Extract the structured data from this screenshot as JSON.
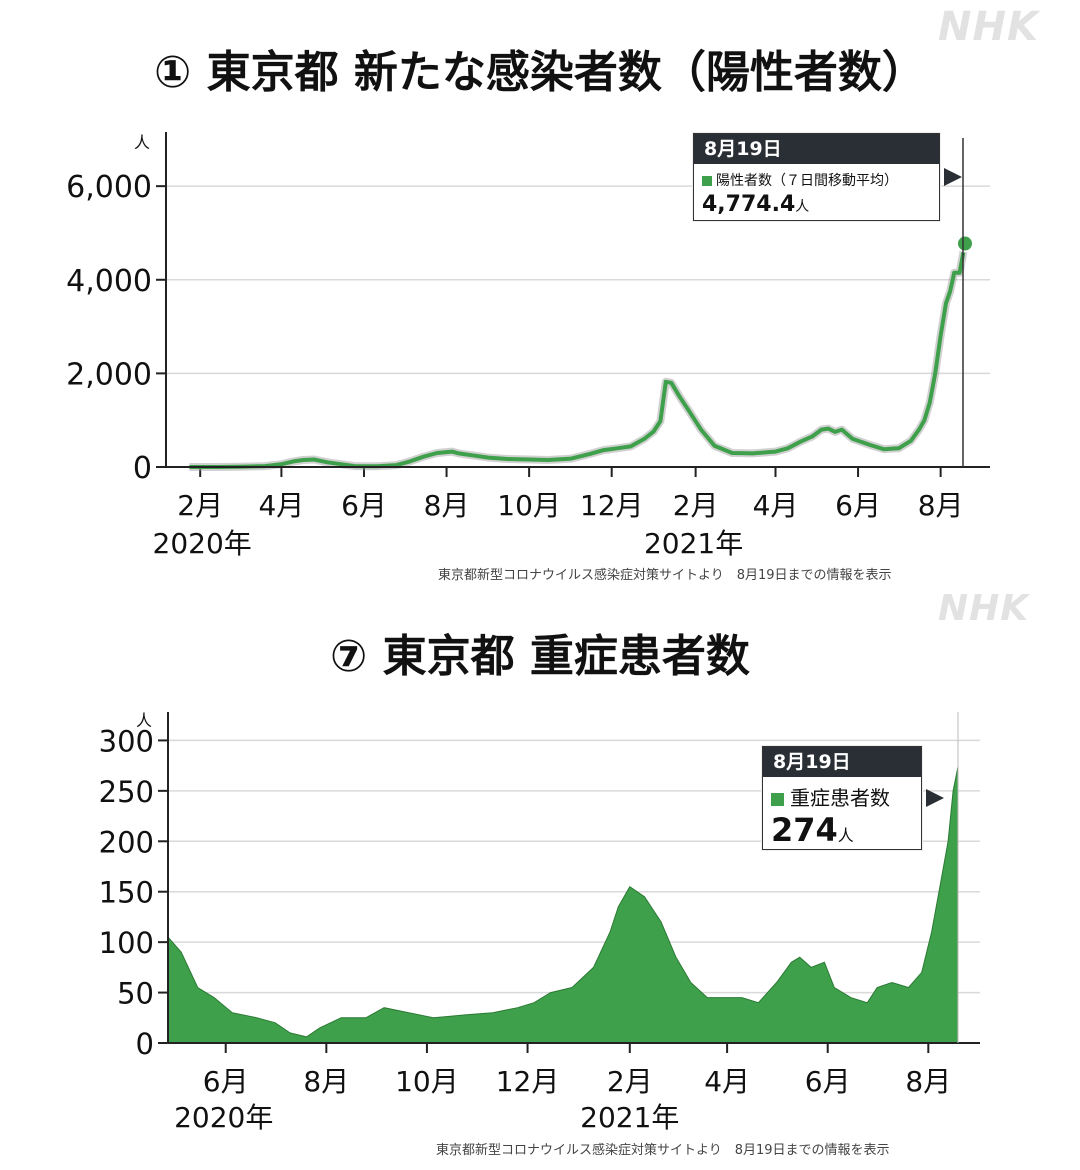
{
  "branding": {
    "logo_text_top": "NHK",
    "logo_text_mid": "NHK"
  },
  "colors": {
    "series": "#3ea04a",
    "series_dark": "#2c7a35",
    "grid": "#d9d9d9",
    "axis": "#222222"
  },
  "chart1": {
    "title": "① 東京都 新たな感染者数（陽性者数）",
    "unit": "人",
    "y_ticks": [
      "6,000",
      "4,000",
      "2,000",
      "0"
    ],
    "x_month_labels": [
      "2月",
      "4月",
      "6月",
      "8月",
      "10月",
      "12月",
      "2月",
      "4月",
      "6月",
      "8月"
    ],
    "year_labels": [
      "2020年",
      "2021年"
    ],
    "source": "東京都新型コロナウイルス感染症対策サイトより　8月19日までの情報を表示",
    "callout": {
      "date": "8月19日",
      "series_label": "陽性者数（７日間移動平均）",
      "value": "4,774.4",
      "unit": "人"
    }
  },
  "chart2": {
    "title": "⑦ 東京都 重症患者数",
    "unit": "人",
    "y_ticks": [
      "300",
      "250",
      "200",
      "150",
      "100",
      "50",
      "0"
    ],
    "x_month_labels": [
      "6月",
      "8月",
      "10月",
      "12月",
      "2月",
      "4月",
      "6月",
      "8月"
    ],
    "year_labels": [
      "2020年",
      "2021年"
    ],
    "source": "東京都新型コロナウイルス感染症対策サイトより　8月19日までの情報を表示",
    "callout": {
      "date": "8月19日",
      "series_label": "重症患者数",
      "value": "274",
      "unit": "人"
    }
  },
  "chart_data": [
    {
      "type": "line",
      "title": "① 東京都 新たな感染者数（陽性者数）",
      "ylabel": "人",
      "ylim": [
        0,
        7200
      ],
      "grid": true,
      "series": [
        {
          "name": "陽性者数（７日間移動平均）",
          "x": [
            "2020-01-24",
            "2020-02-15",
            "2020-03-01",
            "2020-03-20",
            "2020-04-01",
            "2020-04-10",
            "2020-04-17",
            "2020-04-25",
            "2020-05-05",
            "2020-05-15",
            "2020-05-25",
            "2020-06-10",
            "2020-06-25",
            "2020-07-05",
            "2020-07-15",
            "2020-07-25",
            "2020-08-05",
            "2020-08-10",
            "2020-08-20",
            "2020-09-01",
            "2020-09-15",
            "2020-10-01",
            "2020-10-15",
            "2020-11-01",
            "2020-11-15",
            "2020-11-25",
            "2020-12-05",
            "2020-12-15",
            "2020-12-25",
            "2021-01-01",
            "2021-01-06",
            "2021-01-10",
            "2021-01-14",
            "2021-01-20",
            "2021-01-27",
            "2021-02-05",
            "2021-02-15",
            "2021-02-28",
            "2021-03-15",
            "2021-04-01",
            "2021-04-10",
            "2021-04-20",
            "2021-04-28",
            "2021-05-05",
            "2021-05-10",
            "2021-05-15",
            "2021-05-20",
            "2021-05-28",
            "2021-06-10",
            "2021-06-20",
            "2021-07-01",
            "2021-07-10",
            "2021-07-16",
            "2021-07-20",
            "2021-07-24",
            "2021-07-28",
            "2021-08-01",
            "2021-08-05",
            "2021-08-08",
            "2021-08-11",
            "2021-08-15",
            "2021-08-19"
          ],
          "y": [
            0,
            0,
            5,
            20,
            60,
            120,
            150,
            160,
            100,
            60,
            20,
            15,
            40,
            120,
            220,
            300,
            330,
            290,
            250,
            200,
            170,
            160,
            150,
            180,
            280,
            360,
            400,
            440,
            600,
            760,
            980,
            1820,
            1800,
            1510,
            1200,
            800,
            450,
            300,
            290,
            330,
            400,
            550,
            650,
            800,
            820,
            750,
            800,
            600,
            470,
            380,
            400,
            560,
            800,
            1000,
            1380,
            2000,
            2800,
            3500,
            3750,
            4150,
            4150,
            4774.4
          ]
        }
      ]
    },
    {
      "type": "area",
      "title": "⑦ 東京都 重症患者数",
      "ylabel": "人",
      "ylim": [
        0,
        350
      ],
      "grid": true,
      "series": [
        {
          "name": "重症患者数",
          "x": [
            "2020-04-27",
            "2020-05-05",
            "2020-05-15",
            "2020-05-25",
            "2020-06-05",
            "2020-06-20",
            "2020-07-01",
            "2020-07-10",
            "2020-07-20",
            "2020-07-28",
            "2020-08-10",
            "2020-08-25",
            "2020-09-05",
            "2020-09-20",
            "2020-10-05",
            "2020-10-25",
            "2020-11-10",
            "2020-11-25",
            "2020-12-05",
            "2020-12-15",
            "2020-12-28",
            "2021-01-10",
            "2021-01-20",
            "2021-01-25",
            "2021-02-01",
            "2021-02-10",
            "2021-02-20",
            "2021-03-01",
            "2021-03-10",
            "2021-03-20",
            "2021-04-01",
            "2021-04-10",
            "2021-04-20",
            "2021-05-01",
            "2021-05-10",
            "2021-05-15",
            "2021-05-22",
            "2021-05-30",
            "2021-06-05",
            "2021-06-15",
            "2021-06-25",
            "2021-07-01",
            "2021-07-10",
            "2021-07-20",
            "2021-07-28",
            "2021-08-03",
            "2021-08-08",
            "2021-08-13",
            "2021-08-16",
            "2021-08-19"
          ],
          "y": [
            105,
            90,
            55,
            45,
            30,
            25,
            20,
            10,
            6,
            15,
            25,
            25,
            35,
            30,
            25,
            28,
            30,
            35,
            40,
            50,
            55,
            75,
            110,
            135,
            155,
            145,
            120,
            85,
            60,
            45,
            45,
            45,
            40,
            60,
            80,
            85,
            75,
            80,
            55,
            45,
            40,
            55,
            60,
            55,
            70,
            110,
            155,
            200,
            250,
            274
          ]
        }
      ]
    }
  ]
}
